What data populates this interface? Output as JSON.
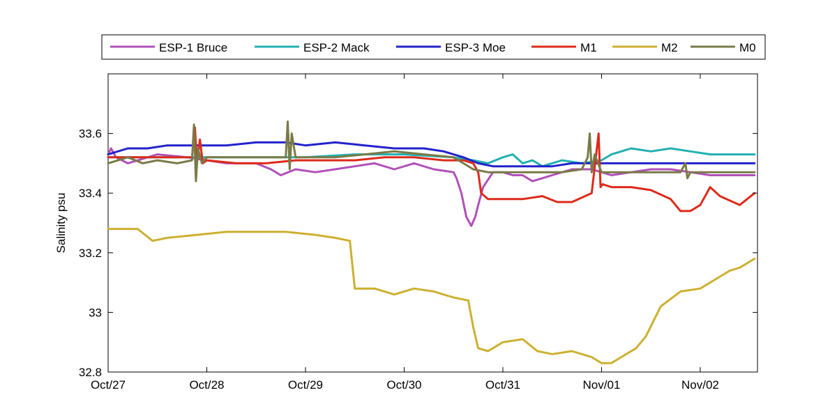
{
  "chart_data": {
    "type": "line",
    "ylabel": "Salinity psu",
    "xlabel": "",
    "ylim": [
      32.8,
      33.8
    ],
    "xlim": [
      "Oct/27",
      "Nov/02 14:00"
    ],
    "yticks": [
      {
        "value": 32.8,
        "label": "32.8"
      },
      {
        "value": 33.0,
        "label": "33"
      },
      {
        "value": 33.2,
        "label": "33.2"
      },
      {
        "value": 33.4,
        "label": "33.4"
      },
      {
        "value": 33.6,
        "label": "33.6"
      }
    ],
    "xticks": [
      {
        "day": 0,
        "label": "Oct/27"
      },
      {
        "day": 1,
        "label": "Oct/28"
      },
      {
        "day": 2,
        "label": "Oct/29"
      },
      {
        "day": 3,
        "label": "Oct/30"
      },
      {
        "day": 4,
        "label": "Oct/31"
      },
      {
        "day": 5,
        "label": "Nov/01"
      },
      {
        "day": 6,
        "label": "Nov/02"
      }
    ],
    "legend_position": "top, outside plot",
    "grid": false,
    "series": [
      {
        "name": "ESP-1 Bruce",
        "color": "#b050b8",
        "x": [
          0,
          0.03,
          0.08,
          0.2,
          0.5,
          0.8,
          1.0,
          1.2,
          1.5,
          1.65,
          1.75,
          1.9,
          2.1,
          2.3,
          2.5,
          2.7,
          2.9,
          3.1,
          3.3,
          3.5,
          3.53,
          3.58,
          3.63,
          3.68,
          3.72,
          3.75,
          3.8,
          3.9,
          4.0,
          4.1,
          4.2,
          4.3,
          4.5,
          4.7,
          4.9,
          5.1,
          5.3,
          5.5,
          5.7,
          5.9,
          6.1,
          6.3,
          6.55
        ],
        "y": [
          33.53,
          33.55,
          33.52,
          33.5,
          33.53,
          33.52,
          33.51,
          33.5,
          33.5,
          33.48,
          33.46,
          33.48,
          33.47,
          33.48,
          33.49,
          33.5,
          33.48,
          33.5,
          33.48,
          33.47,
          33.45,
          33.4,
          33.32,
          33.29,
          33.32,
          33.36,
          33.42,
          33.47,
          33.47,
          33.46,
          33.46,
          33.44,
          33.46,
          33.48,
          33.48,
          33.46,
          33.47,
          33.48,
          33.48,
          33.47,
          33.46,
          33.46,
          33.46
        ]
      },
      {
        "name": "ESP-2 Mack",
        "color": "#22b0b0",
        "x": [
          0,
          0.5,
          1.0,
          1.5,
          2.0,
          2.5,
          3.0,
          3.5,
          3.7,
          3.85,
          4.0,
          4.1,
          4.2,
          4.3,
          4.4,
          4.6,
          4.8,
          5.0,
          5.1,
          5.3,
          5.5,
          5.7,
          5.9,
          6.1,
          6.3,
          6.55
        ],
        "y": [
          33.52,
          33.52,
          33.52,
          33.52,
          33.52,
          33.53,
          33.53,
          33.52,
          33.51,
          33.5,
          33.52,
          33.53,
          33.5,
          33.51,
          33.49,
          33.51,
          33.5,
          33.51,
          33.53,
          33.55,
          33.54,
          33.55,
          33.54,
          33.53,
          33.53,
          33.53
        ]
      },
      {
        "name": "ESP-3 Moe",
        "color": "#2222cc",
        "x": [
          0,
          0.2,
          0.4,
          0.6,
          0.8,
          1.0,
          1.2,
          1.5,
          1.8,
          2.0,
          2.3,
          2.6,
          2.9,
          3.2,
          3.4,
          3.6,
          3.75,
          3.9,
          4.1,
          4.3,
          4.5,
          4.7,
          5.0,
          5.3,
          5.6,
          5.9,
          6.2,
          6.55
        ],
        "y": [
          33.53,
          33.55,
          33.55,
          33.56,
          33.56,
          33.56,
          33.56,
          33.57,
          33.57,
          33.56,
          33.57,
          33.56,
          33.55,
          33.55,
          33.54,
          33.52,
          33.5,
          33.49,
          33.49,
          33.49,
          33.49,
          33.5,
          33.5,
          33.5,
          33.5,
          33.5,
          33.5,
          33.5
        ]
      },
      {
        "name": "M1",
        "color": "#dd2a1a",
        "x": [
          0,
          0.5,
          0.85,
          0.88,
          0.9,
          0.93,
          0.96,
          1.0,
          1.3,
          1.6,
          1.9,
          2.2,
          2.5,
          2.8,
          3.1,
          3.4,
          3.6,
          3.7,
          3.75,
          3.78,
          3.85,
          4.0,
          4.2,
          4.4,
          4.55,
          4.7,
          4.9,
          4.97,
          4.99,
          5.01,
          5.1,
          5.3,
          5.5,
          5.7,
          5.8,
          5.9,
          6.0,
          6.1,
          6.2,
          6.4,
          6.55
        ],
        "y": [
          33.52,
          33.52,
          33.52,
          33.62,
          33.5,
          33.58,
          33.5,
          33.51,
          33.5,
          33.5,
          33.51,
          33.51,
          33.51,
          33.52,
          33.52,
          33.51,
          33.51,
          33.5,
          33.47,
          33.4,
          33.38,
          33.38,
          33.38,
          33.39,
          33.37,
          33.37,
          33.4,
          33.6,
          33.42,
          33.43,
          33.42,
          33.42,
          33.41,
          33.38,
          33.34,
          33.34,
          33.36,
          33.42,
          33.39,
          33.36,
          33.4
        ]
      },
      {
        "name": "M2",
        "color": "#ccb030",
        "x": [
          0,
          0.3,
          0.45,
          0.6,
          0.9,
          1.2,
          1.5,
          1.8,
          2.1,
          2.3,
          2.45,
          2.5,
          2.7,
          2.9,
          3.1,
          3.3,
          3.5,
          3.65,
          3.7,
          3.75,
          3.85,
          4.0,
          4.2,
          4.35,
          4.5,
          4.7,
          4.9,
          5.0,
          5.1,
          5.2,
          5.35,
          5.45,
          5.6,
          5.8,
          6.0,
          6.2,
          6.3,
          6.4,
          6.55
        ],
        "y": [
          33.28,
          33.28,
          33.24,
          33.25,
          33.26,
          33.27,
          33.27,
          33.27,
          33.26,
          33.25,
          33.24,
          33.08,
          33.08,
          33.06,
          33.08,
          33.07,
          33.05,
          33.04,
          32.95,
          32.88,
          32.87,
          32.9,
          32.91,
          32.87,
          32.86,
          32.87,
          32.85,
          32.83,
          32.83,
          32.85,
          32.88,
          32.92,
          33.02,
          33.07,
          33.08,
          33.12,
          33.14,
          33.15,
          33.18
        ]
      },
      {
        "name": "M0",
        "color": "#7a7a48",
        "x": [
          0,
          0.2,
          0.35,
          0.5,
          0.7,
          0.85,
          0.87,
          0.89,
          0.91,
          0.95,
          1.0,
          1.3,
          1.6,
          1.8,
          1.82,
          1.84,
          1.86,
          1.9,
          2.0,
          2.3,
          2.6,
          2.9,
          3.2,
          3.5,
          3.6,
          3.7,
          3.85,
          4.0,
          4.3,
          4.6,
          4.8,
          4.86,
          4.88,
          4.9,
          4.93,
          5.0,
          5.3,
          5.6,
          5.8,
          5.85,
          5.87,
          5.9,
          6.1,
          6.3,
          6.55
        ],
        "y": [
          33.5,
          33.52,
          33.5,
          33.51,
          33.5,
          33.51,
          33.63,
          33.44,
          33.55,
          33.5,
          33.52,
          33.52,
          33.52,
          33.52,
          33.64,
          33.48,
          33.6,
          33.52,
          33.52,
          33.52,
          33.53,
          33.54,
          33.53,
          33.52,
          33.5,
          33.48,
          33.47,
          33.47,
          33.47,
          33.47,
          33.48,
          33.52,
          33.6,
          33.47,
          33.53,
          33.47,
          33.47,
          33.47,
          33.47,
          33.5,
          33.45,
          33.47,
          33.47,
          33.47,
          33.47
        ]
      }
    ]
  }
}
